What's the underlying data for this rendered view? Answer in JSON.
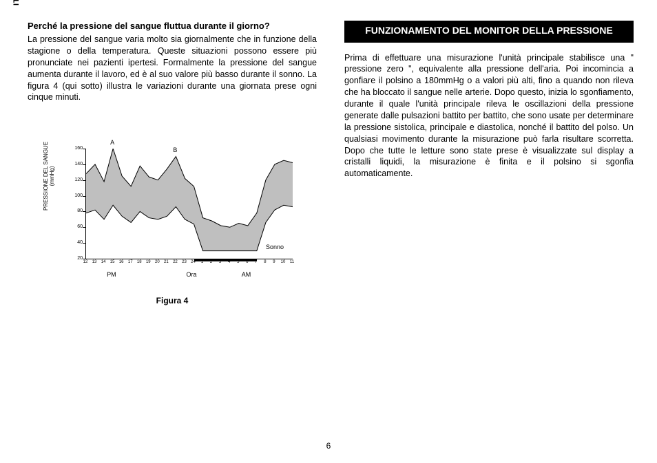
{
  "page": {
    "lang_tag": "IT",
    "page_number": "6"
  },
  "left": {
    "question": "Perché la pressione del sangue fluttua durante il giorno?",
    "paragraph": "La pressione del sangue varia molto sia giornalmente che in funzione della stagione o della temperatura. Queste situazioni possono essere più pronunciate nei pazienti ipertesi. Formalmente la pressione del sangue aumenta durante il lavoro, ed è al suo valore più basso durante il sonno. La figura 4 (qui sotto) illustra le variazioni durante una giornata prese ogni cinque minuti."
  },
  "right": {
    "section_title": "FUNZIONAMENTO DEL MONITOR DELLA PRESSIONE",
    "paragraph": "Prima di effettuare una misurazione l'unità principale stabilisce una \" pressione zero \", equivalente alla pressione dell'aria. Poi incomincia a gonfiare il polsino a 180mmHg o a valori più alti, fino a quando non rileva che ha bloccato il sangue nelle arterie. Dopo questo, inizia lo sgonfiamento, durante il quale l'unità principale rileva le oscillazioni della pressione generate dalle pulsazioni battito per battito, che sono usate per determinare la pressione sistolica, principale e diastolica, nonché il battito del polso. Un qualsiasi movimento durante la misurazione può farla risultare scorretta. Dopo che tutte le letture sono state prese è visualizzate sul display a cristalli liquidi, la misurazione è finita e il polsino si sgonfia automaticamente."
  },
  "figure": {
    "caption": "Figura 4",
    "y_axis_label": "PRESSIONE DEL SANGUE\n(mmHg)",
    "x_row_labels": {
      "pm": "PM",
      "ora": "Ora",
      "am": "AM"
    },
    "annotations": {
      "A": "A",
      "B": "B",
      "sonno": "Sonno"
    },
    "chart": {
      "type": "area-band",
      "ylim": [
        20,
        160
      ],
      "ytick_step": 20,
      "yticks": [
        20,
        40,
        60,
        80,
        100,
        120,
        140,
        160
      ],
      "xticks": [
        12,
        13,
        14,
        15,
        16,
        17,
        18,
        19,
        20,
        21,
        22,
        23,
        24,
        1,
        2,
        3,
        4,
        5,
        6,
        7,
        8,
        9,
        10,
        11
      ],
      "upper_series": [
        128,
        140,
        118,
        160,
        125,
        112,
        138,
        124,
        120,
        134,
        150,
        122,
        112,
        72,
        68,
        62,
        60,
        65,
        62,
        78,
        120,
        140,
        145,
        142,
        138
      ],
      "lower_series": [
        78,
        82,
        70,
        88,
        74,
        66,
        80,
        72,
        70,
        74,
        86,
        70,
        64,
        30,
        30,
        30,
        30,
        30,
        30,
        30,
        66,
        82,
        88,
        86,
        84
      ],
      "band_color": "#bfbfbf",
      "line_color": "#000000",
      "line_width": 1,
      "background_color": "#ffffff",
      "sleep_bar": {
        "start_index": 12,
        "end_index": 19
      },
      "annot_A_x_index": 3,
      "annot_B_x_index": 10,
      "label_fontsize": 7,
      "tick_fontsize": 6
    }
  }
}
